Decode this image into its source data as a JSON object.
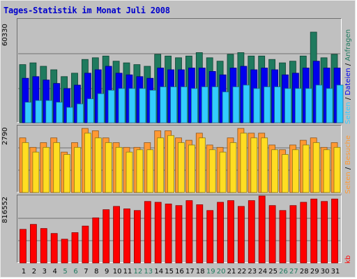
{
  "title": "Tages-Statistik im Monat Juli 2008",
  "chart_data": {
    "type": "bar",
    "title": "Tages-Statistik im Monat Juli 2008",
    "categories": [
      "1",
      "2",
      "3",
      "4",
      "5",
      "6",
      "7",
      "8",
      "9",
      "10",
      "11",
      "12",
      "13",
      "14",
      "15",
      "16",
      "17",
      "18",
      "19",
      "20",
      "21",
      "22",
      "23",
      "24",
      "25",
      "26",
      "27",
      "28",
      "29",
      "30",
      "31"
    ],
    "weekend_days": [
      "5",
      "6",
      "12",
      "13",
      "19",
      "20",
      "26",
      "27"
    ],
    "panels": [
      {
        "id": "top",
        "ymax": "60330",
        "series": [
          {
            "name": "Anfragen",
            "color": "#1f7a5e",
            "values": [
              34000,
              35000,
              33000,
              31000,
              27000,
              29000,
              37000,
              38000,
              39000,
              36000,
              35000,
              34000,
              33000,
              40000,
              39000,
              38000,
              39000,
              41000,
              38000,
              36000,
              40000,
              41000,
              39000,
              39000,
              37000,
              35000,
              36000,
              39000,
              53000,
              38000,
              40000
            ]
          },
          {
            "name": "Dateien",
            "color": "#0000ee",
            "values": [
              26000,
              27000,
              25000,
              23000,
              20000,
              22000,
              29000,
              31000,
              33000,
              29000,
              28000,
              27000,
              26000,
              32000,
              31000,
              31000,
              32000,
              32000,
              30000,
              28000,
              32000,
              33000,
              31000,
              32000,
              31000,
              28000,
              29000,
              32000,
              36000,
              32000,
              32000
            ]
          },
          {
            "name": "Seiten",
            "color": "#33ccff",
            "values": [
              12000,
              13000,
              13000,
              12000,
              9000,
              11000,
              14000,
              17000,
              19000,
              20000,
              20000,
              20000,
              19000,
              21000,
              21000,
              21000,
              20000,
              21000,
              21000,
              18000,
              21000,
              22000,
              20000,
              21000,
              21000,
              20000,
              20000,
              20000,
              22000,
              20000,
              22000
            ]
          }
        ]
      },
      {
        "id": "mid",
        "ymax": "2790",
        "series": [
          {
            "name": "Besuche",
            "color": "#ff9933",
            "values": [
              2300,
              1900,
              2100,
              2300,
              1700,
              2100,
              2700,
              2600,
              2300,
              2100,
              1900,
              1900,
              2100,
              2600,
              2600,
              2300,
              2200,
              2500,
              2000,
              1900,
              2300,
              2700,
              2500,
              2500,
              2000,
              1800,
              2000,
              2200,
              2300,
              1900,
              2100
            ]
          },
          {
            "name": "Seiten",
            "color": "#ffdd22",
            "values": [
              2100,
              1700,
              1900,
              2100,
              1600,
              1900,
              2500,
              2300,
              2100,
              1900,
              1700,
              1800,
              1800,
              2300,
              2400,
              2100,
              2000,
              2300,
              1800,
              1700,
              2100,
              2500,
              2300,
              2300,
              1800,
              1600,
              1800,
              2000,
              2100,
              1800,
              1900
            ]
          }
        ]
      },
      {
        "id": "bot",
        "ymax": "816552",
        "series": [
          {
            "name": "kb",
            "color": "#ff0000",
            "values": [
              410000,
              470000,
              420000,
              360000,
              290000,
              370000,
              450000,
              550000,
              650000,
              690000,
              660000,
              640000,
              750000,
              740000,
              720000,
              700000,
              760000,
              710000,
              640000,
              740000,
              760000,
              690000,
              760000,
              816552,
              700000,
              640000,
              700000,
              740000,
              780000,
              750000,
              780000
            ]
          }
        ]
      }
    ],
    "legend": {
      "top": [
        "Seiten",
        "Dateien",
        "Anfragen"
      ],
      "mid": [
        "Seiten",
        "Besuche"
      ],
      "bot": [
        "kb"
      ]
    },
    "colors": {
      "day_label_weekday": "#000000",
      "day_label_weekend": "#1f7a5e",
      "background": "#c0c0c0",
      "title": "#0000cc"
    }
  }
}
